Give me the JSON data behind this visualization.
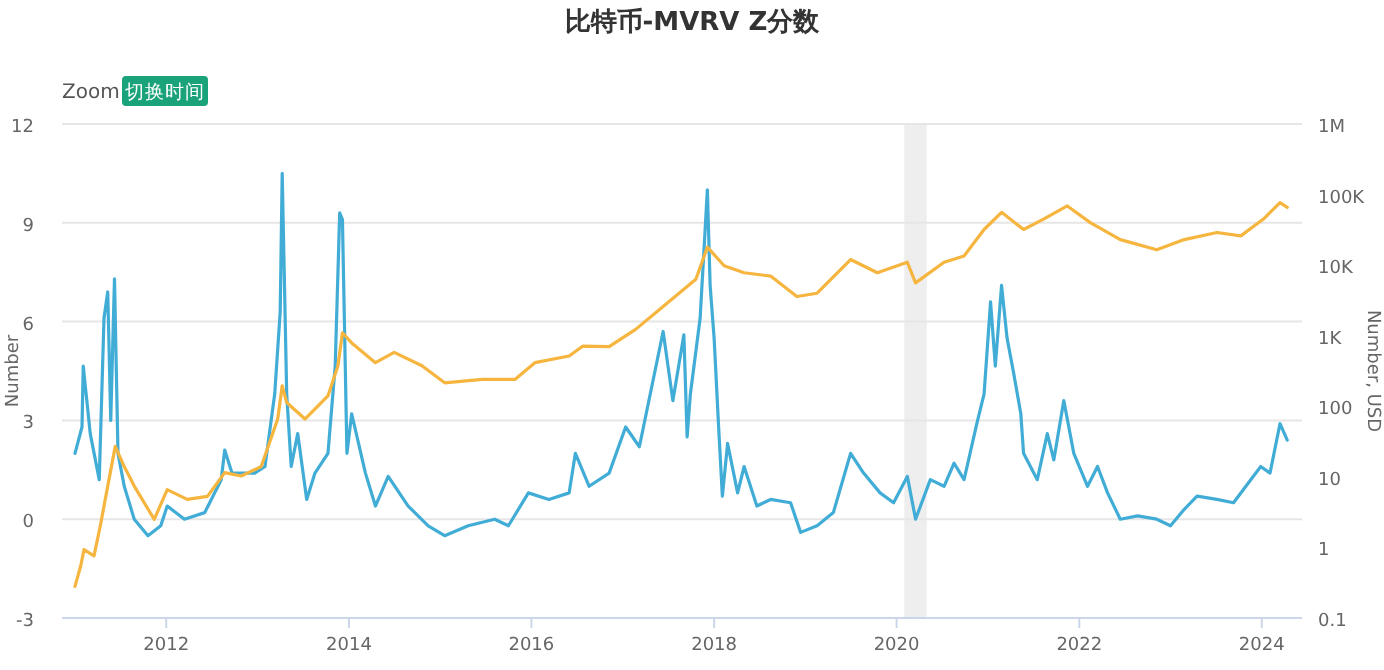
{
  "chart_data": {
    "type": "line",
    "title": "比特币-MVRV Z分数",
    "ylabel": "Number",
    "y2label": "Number, USD",
    "annotations": [
      "Zoom",
      "切换时间"
    ],
    "xlim": [
      "2010-11-10",
      "2024-06-10"
    ],
    "xticks": [
      "2012",
      "2014",
      "2016",
      "2018",
      "2020",
      "2022",
      "2024"
    ],
    "ylim": [
      -3,
      12
    ],
    "yticks": [
      -3,
      0,
      3,
      6,
      9,
      12
    ],
    "y2lim": [
      0.1,
      1000000
    ],
    "y2ticks": [
      0.1,
      1,
      10,
      100,
      {
        "value": 1000,
        "label": "1K"
      },
      {
        "value": 10000,
        "label": "10K"
      },
      {
        "value": 100000,
        "label": "100K"
      },
      {
        "value": 1000000,
        "label": "1M"
      }
    ],
    "log": "y2",
    "grid": "y",
    "marker": "none",
    "line_style": "solid",
    "bands": [
      {
        "axis": "x",
        "from": "2020-02-01",
        "to": "2020-05-01",
        "color": "#eeeeee"
      }
    ],
    "series": [
      {
        "color": "#41add6",
        "x": [
          "2011-01-01",
          "2011-01-29",
          "2011-02-03",
          "2011-03-03",
          "2011-04-08",
          "2011-04-27",
          "2011-05-12",
          "2011-05-24",
          "2011-06-08",
          "2011-06-22",
          "2011-07-17",
          "2011-08-26",
          "2011-10-20",
          "2011-12-10",
          "2012-01-05",
          "2012-03-14",
          "2012-06-03",
          "2012-08-08",
          "2012-08-22",
          "2012-09-20",
          "2012-12-20",
          "2013-01-30",
          "2013-03-10",
          "2013-04-01",
          "2013-04-09",
          "2013-04-27",
          "2013-05-15",
          "2013-06-10",
          "2013-07-16",
          "2013-08-18",
          "2013-10-09",
          "2013-11-07",
          "2013-11-25",
          "2013-12-06",
          "2013-12-24",
          "2014-01-12",
          "2014-03-08",
          "2014-04-17",
          "2014-06-07",
          "2014-08-26",
          "2014-11-14",
          "2015-01-19",
          "2015-04-23",
          "2015-08-07",
          "2015-10-01",
          "2015-12-20",
          "2016-03-11",
          "2016-05-31",
          "2016-06-25",
          "2016-08-19",
          "2016-11-07",
          "2017-01-12",
          "2017-03-08",
          "2017-06-11",
          "2017-07-20",
          "2017-09-02",
          "2017-09-15",
          "2017-09-28",
          "2017-11-06",
          "2017-12-05",
          "2017-12-16",
          "2018-01-01",
          "2018-01-19",
          "2018-02-03",
          "2018-02-24",
          "2018-04-05",
          "2018-05-01",
          "2018-06-21",
          "2018-08-15",
          "2018-11-03",
          "2018-12-13",
          "2019-02-17",
          "2019-04-23",
          "2019-07-01",
          "2019-08-22",
          "2019-10-27",
          "2019-12-20",
          "2020-02-13",
          "2020-03-17",
          "2020-05-15",
          "2020-07-09",
          "2020-08-18",
          "2020-09-27",
          "2020-11-17",
          "2020-12-16",
          "2021-01-11",
          "2021-01-30",
          "2021-02-24",
          "2021-03-18",
          "2021-04-13",
          "2021-05-12",
          "2021-05-23",
          "2021-07-17",
          "2021-08-26",
          "2021-09-21",
          "2021-10-31",
          "2021-12-10",
          "2022-02-03",
          "2022-03-15",
          "2022-04-24",
          "2022-06-14",
          "2022-08-22",
          "2022-11-07",
          "2023-01-01",
          "2023-02-25",
          "2023-04-17",
          "2023-07-06",
          "2023-09-10",
          "2023-11-18",
          "2023-12-28",
          "2024-02-03",
          "2024-03-14",
          "2024-04-12"
        ],
        "values": [
          2.0,
          2.8,
          4.65,
          2.6,
          1.2,
          6.1,
          6.9,
          3.0,
          7.3,
          2.0,
          1.0,
          0.0,
          -0.5,
          -0.2,
          0.4,
          0.0,
          0.2,
          1.2,
          2.1,
          1.4,
          1.4,
          1.6,
          3.8,
          6.3,
          10.5,
          3.8,
          1.6,
          2.6,
          0.6,
          1.4,
          2.0,
          4.65,
          9.3,
          9.1,
          2.0,
          3.2,
          1.4,
          0.4,
          1.3,
          0.4,
          -0.2,
          -0.5,
          -0.2,
          0.0,
          -0.2,
          0.8,
          0.6,
          0.8,
          2.0,
          1.0,
          1.4,
          2.8,
          2.2,
          5.7,
          3.6,
          5.6,
          2.5,
          3.8,
          6.1,
          10.0,
          7.1,
          5.5,
          2.8,
          0.7,
          2.3,
          0.8,
          1.6,
          0.4,
          0.6,
          0.5,
          -0.4,
          -0.2,
          0.2,
          2.0,
          1.4,
          0.8,
          0.5,
          1.3,
          0.0,
          1.2,
          1.0,
          1.7,
          1.2,
          2.9,
          3.8,
          6.6,
          4.65,
          7.1,
          5.5,
          4.45,
          3.2,
          2.0,
          1.2,
          2.6,
          1.8,
          3.6,
          2.0,
          1.0,
          1.6,
          0.8,
          0.0,
          0.1,
          0.0,
          -0.2,
          0.3,
          0.7,
          0.6,
          0.5,
          1.2,
          1.6,
          1.4,
          2.9,
          2.4
        ]
      },
      {
        "color": "#f6b53f",
        "axis": "y2",
        "x": [
          "2011-01-01",
          "2011-01-24",
          "2011-02-06",
          "2011-03-18",
          "2011-04-12",
          "2011-05-12",
          "2011-06-11",
          "2011-07-17",
          "2011-08-26",
          "2011-11-14",
          "2012-01-05",
          "2012-03-25",
          "2012-06-14",
          "2012-08-22",
          "2012-10-27",
          "2013-01-15",
          "2013-03-22",
          "2013-04-09",
          "2013-04-27",
          "2013-07-09",
          "2013-10-09",
          "2013-11-18",
          "2013-12-06",
          "2014-01-12",
          "2014-04-17",
          "2014-07-01",
          "2014-10-20",
          "2015-01-19",
          "2015-06-18",
          "2015-10-27",
          "2016-01-15",
          "2016-05-31",
          "2016-07-24",
          "2016-11-07",
          "2017-02-21",
          "2017-06-11",
          "2017-10-20",
          "2017-12-05",
          "2018-02-10",
          "2018-05-01",
          "2018-08-15",
          "2018-11-28",
          "2019-02-17",
          "2019-07-01",
          "2019-10-16",
          "2020-02-13",
          "2020-03-17",
          "2020-07-09",
          "2020-09-27",
          "2020-12-16",
          "2021-02-24",
          "2021-05-23",
          "2021-08-11",
          "2021-11-14",
          "2022-02-14",
          "2022-06-14",
          "2022-11-07",
          "2023-02-25",
          "2023-07-06",
          "2023-10-09",
          "2024-01-08",
          "2024-03-14",
          "2024-04-12"
        ],
        "values": [
          0.28,
          0.55,
          0.93,
          0.76,
          2.0,
          7.4,
          27,
          14,
          7.4,
          2.5,
          6.6,
          4.8,
          5.3,
          11.5,
          10.3,
          14,
          66,
          195,
          113,
          66,
          140,
          375,
          1100,
          790,
          415,
          580,
          375,
          215,
          240,
          240,
          415,
          515,
          710,
          700,
          1230,
          2600,
          6300,
          18000,
          9800,
          7800,
          7000,
          3600,
          4000,
          12000,
          7800,
          11000,
          5600,
          11000,
          13500,
          32000,
          56000,
          32000,
          45000,
          69000,
          40000,
          23000,
          16500,
          23000,
          29000,
          26000,
          45000,
          77000,
          66000
        ]
      }
    ]
  }
}
